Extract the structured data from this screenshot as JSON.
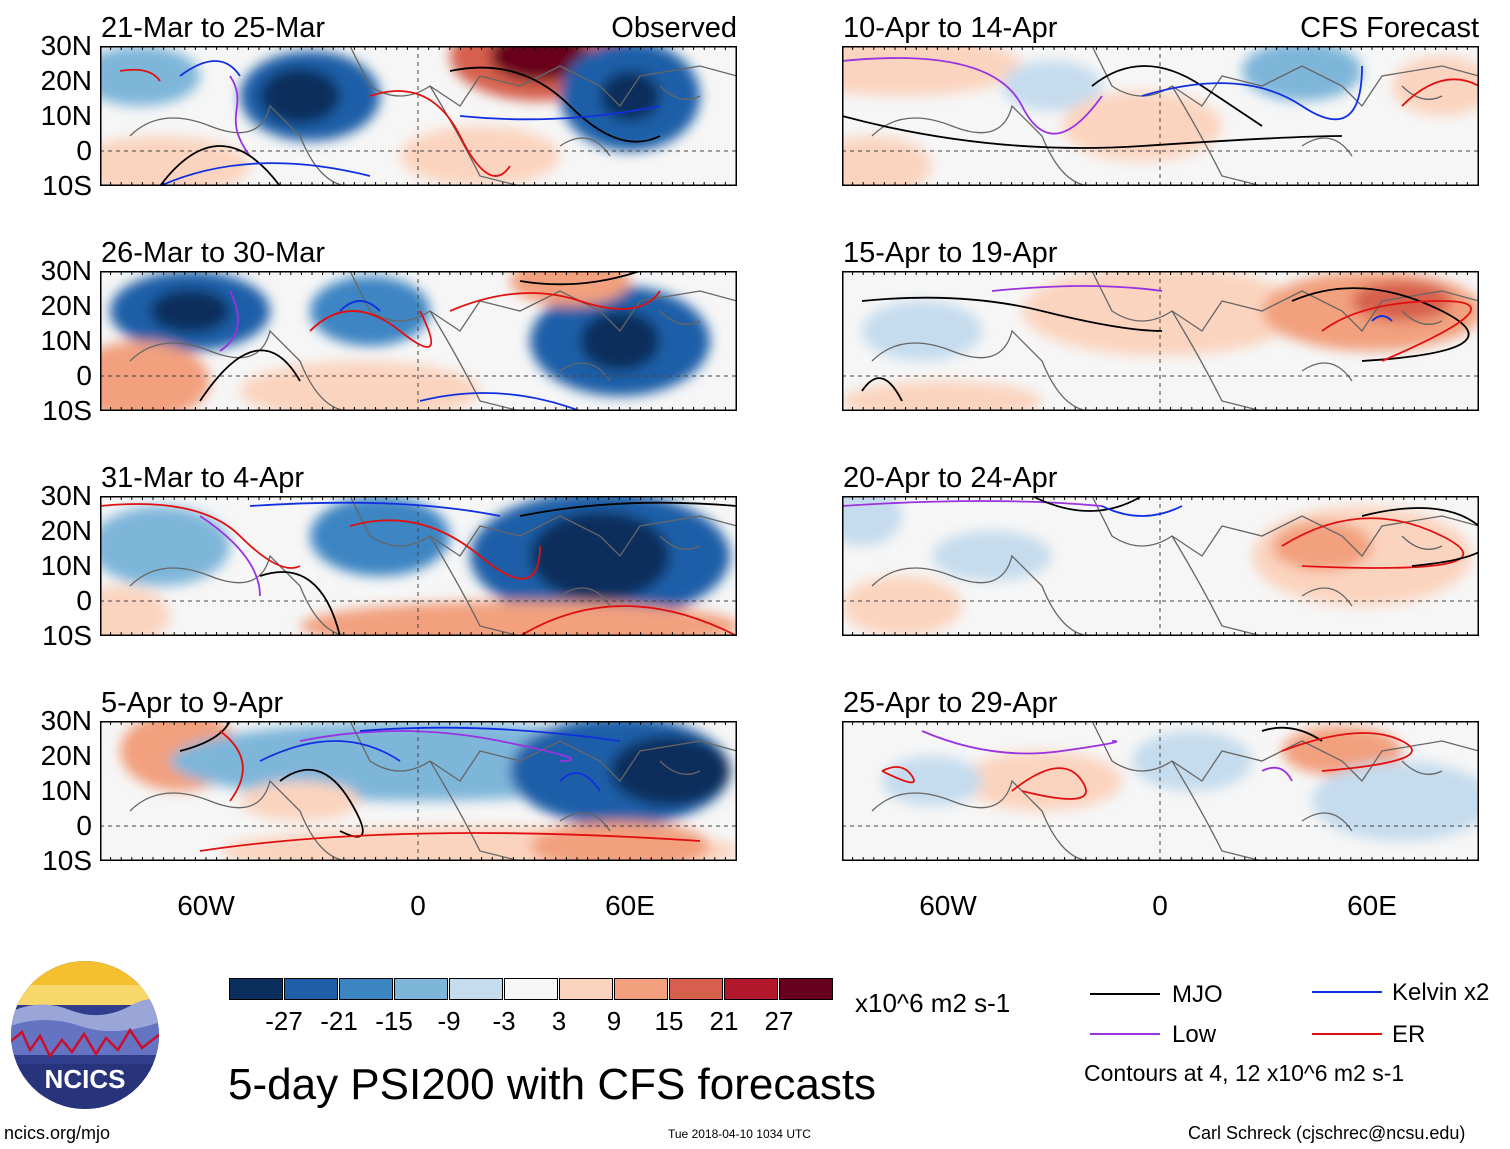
{
  "panels": [
    {
      "date": "21-Mar to 25-Mar",
      "label": "Observed"
    },
    {
      "date": "10-Apr to 14-Apr",
      "label": "CFS Forecast"
    },
    {
      "date": "26-Mar to 30-Mar",
      "label": ""
    },
    {
      "date": "15-Apr to 19-Apr",
      "label": ""
    },
    {
      "date": "31-Mar to 4-Apr",
      "label": ""
    },
    {
      "date": "20-Apr to 24-Apr",
      "label": ""
    },
    {
      "date": "5-Apr to 9-Apr",
      "label": ""
    },
    {
      "date": "25-Apr to 29-Apr",
      "label": ""
    }
  ],
  "axes": {
    "lat_labels": [
      "30N",
      "20N",
      "10N",
      "0",
      "10S"
    ],
    "lon_labels": [
      "60W",
      "0",
      "60E"
    ]
  },
  "colorbar": {
    "colors": [
      "#0b2f5c",
      "#1f5fa8",
      "#3c85c3",
      "#7eb6da",
      "#c5dcee",
      "#f7f7f7",
      "#fbd4bf",
      "#f2a07e",
      "#d6604d",
      "#b2182b",
      "#67001f"
    ],
    "ticks": [
      "-27",
      "-21",
      "-15",
      "-9",
      "-3",
      "3",
      "9",
      "15",
      "21",
      "27"
    ],
    "units": "x10^6 m2 s-1"
  },
  "title": "5-day PSI200 with CFS forecasts",
  "legend": {
    "items": [
      {
        "label": "MJO",
        "color": "#000000"
      },
      {
        "label": "Kelvin x2",
        "color": "#1030e0"
      },
      {
        "label": "Low",
        "color": "#9a32e0"
      },
      {
        "label": "ER",
        "color": "#e01010"
      }
    ],
    "note": "Contours at 4, 12 x10^6 m2 s-1"
  },
  "logo": {
    "text": "NCICS"
  },
  "footer": {
    "website": "ncics.org/mjo",
    "timestamp": "Tue 2018-04-10 1034 UTC",
    "credit": "Carl Schreck (cjschrec@ncsu.edu)"
  }
}
